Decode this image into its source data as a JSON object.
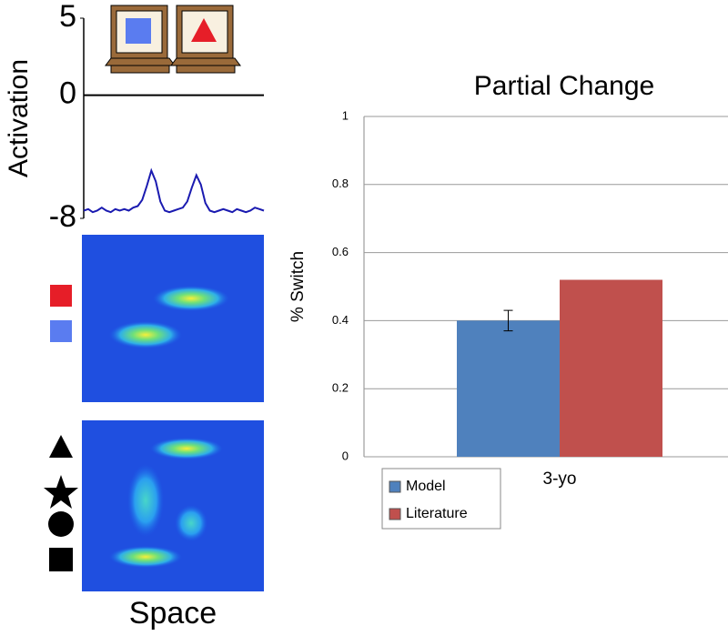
{
  "chart_data": [
    {
      "type": "line",
      "ylabel": "Activation",
      "xlabel": "Space",
      "ylim": [
        -8,
        5
      ],
      "yticks": [
        5,
        0,
        -8
      ],
      "color": "#1a1ab0",
      "values": [
        -7.5,
        -7.4,
        -7.6,
        -7.5,
        -7.3,
        -7.5,
        -7.6,
        -7.4,
        -7.5,
        -7.4,
        -7.5,
        -7.3,
        -7.2,
        -6.8,
        -5.9,
        -4.9,
        -5.6,
        -6.9,
        -7.5,
        -7.6,
        -7.5,
        -7.4,
        -7.3,
        -6.9,
        -6.0,
        -5.2,
        -5.8,
        -7.0,
        -7.5,
        -7.6,
        -7.5,
        -7.4,
        -7.5,
        -7.6,
        -7.4,
        -7.5,
        -7.6,
        -7.5,
        -7.3,
        -7.4,
        -7.5
      ]
    },
    {
      "type": "bar",
      "title": "Partial Change",
      "ylabel": "% Switch",
      "categories": [
        "3-yo"
      ],
      "ylim": [
        0,
        1
      ],
      "yticks": [
        0,
        0.2,
        0.4,
        0.6,
        0.8,
        1
      ],
      "grid": true,
      "series": [
        {
          "name": "Model",
          "color": "#4f81bd",
          "values": [
            0.4
          ],
          "errors": [
            0.03
          ]
        },
        {
          "name": "Literature",
          "color": "#c0504d",
          "values": [
            0.52
          ]
        }
      ]
    }
  ]
}
